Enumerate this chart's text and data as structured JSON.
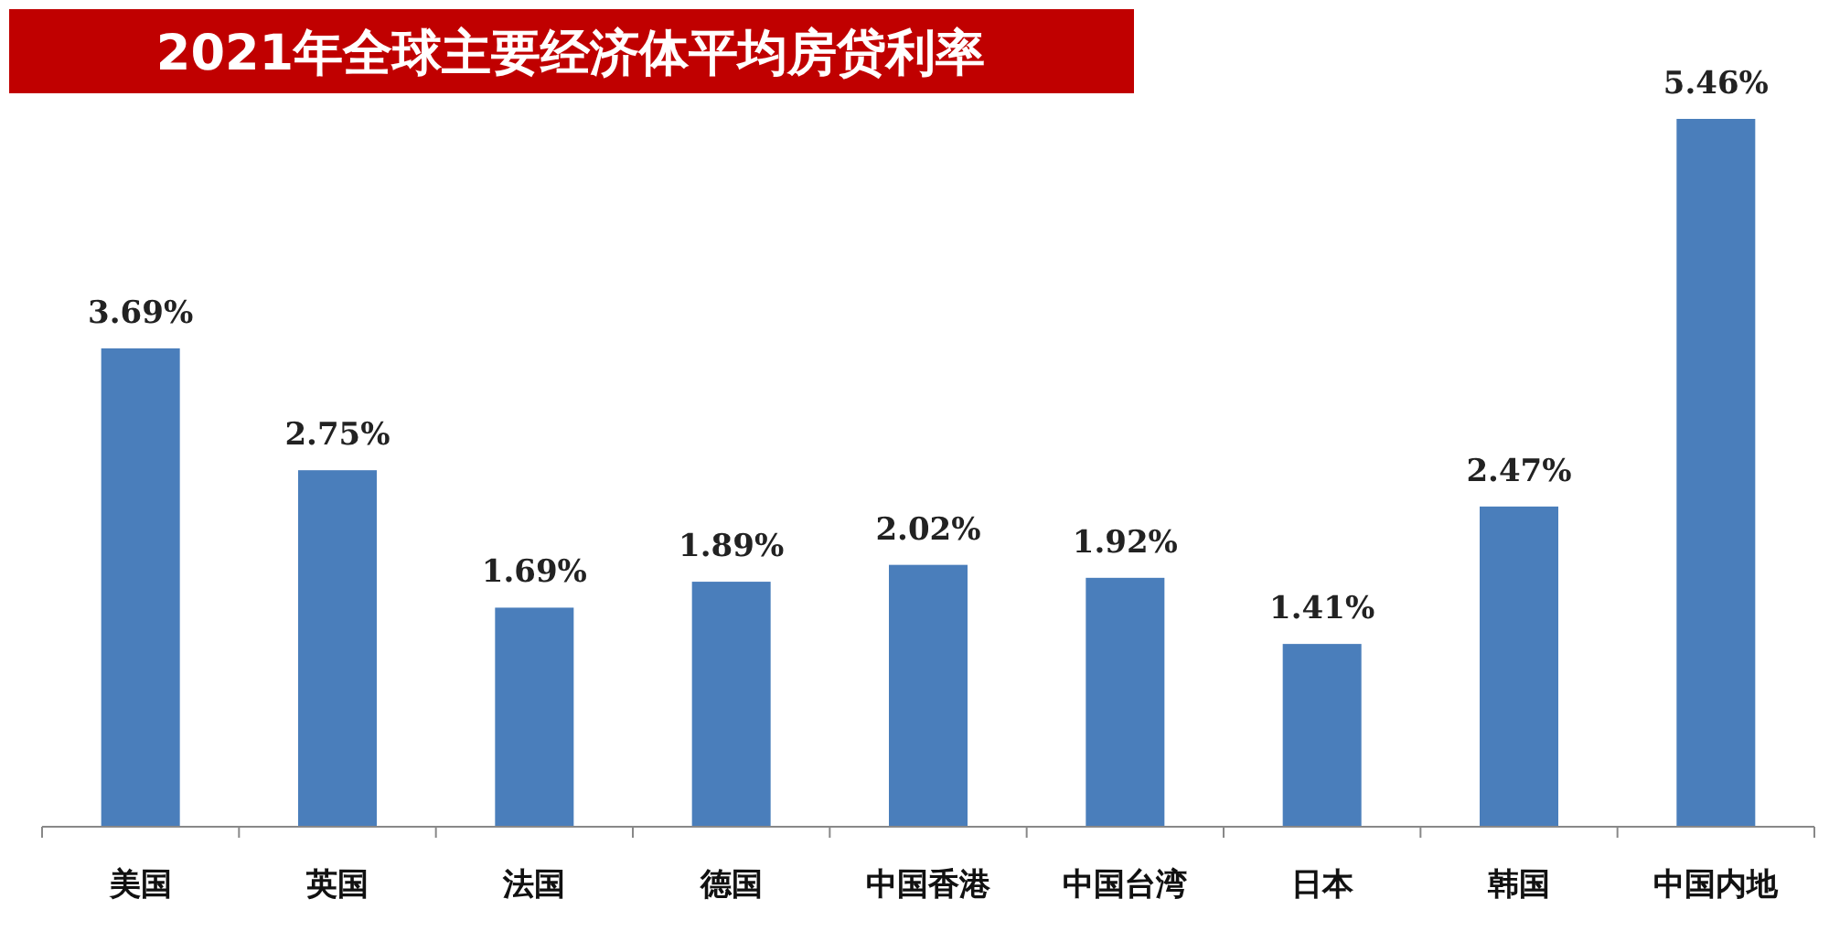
{
  "chart_data": {
    "type": "bar",
    "title": "2021年全球主要经济体平均房贷利率",
    "categories": [
      "美国",
      "英国",
      "法国",
      "德国",
      "中国香港",
      "中国台湾",
      "日本",
      "韩国",
      "中国内地"
    ],
    "values": [
      3.69,
      2.75,
      1.69,
      1.89,
      2.02,
      1.92,
      1.41,
      2.47,
      5.46
    ],
    "value_labels": [
      "3.69%",
      "2.75%",
      "1.69%",
      "1.89%",
      "2.02%",
      "1.92%",
      "1.41%",
      "2.47%",
      "5.46%"
    ],
    "color": "#4a7ebb"
  }
}
